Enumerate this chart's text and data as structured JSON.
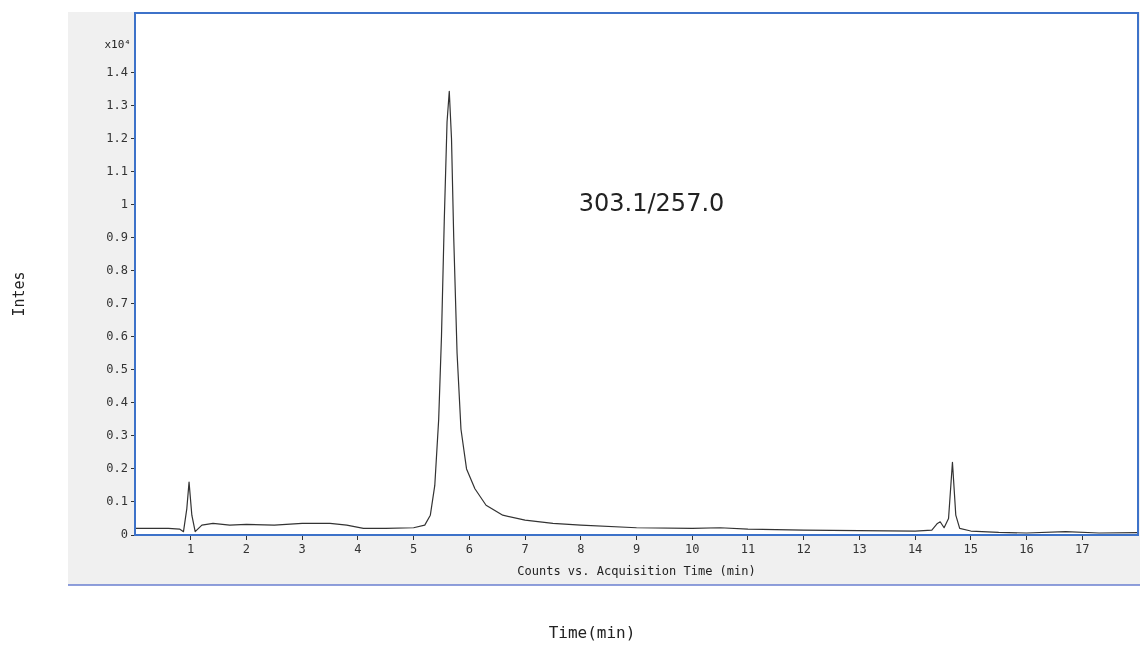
{
  "chart_data": {
    "type": "line",
    "xlabel": "Counts vs. Acquisition Time (min)",
    "annotations": [
      "303.1/257.0",
      "x10⁴",
      "Time(min)",
      "Intes"
    ],
    "xlim": [
      0,
      18
    ],
    "xticks": [
      1,
      2,
      3,
      4,
      5,
      6,
      7,
      8,
      9,
      10,
      11,
      12,
      13,
      14,
      15,
      16,
      17
    ],
    "ylim": [
      0,
      1.58
    ],
    "yticks": [
      0,
      0.1,
      0.2,
      0.3,
      0.4,
      0.5,
      0.6,
      0.7,
      0.8,
      0.9,
      1,
      1.1,
      1.2,
      1.3,
      1.4
    ],
    "grid": false,
    "legend": false,
    "marker": "none",
    "line_style": "solid",
    "series": [
      {
        "color": "#333333",
        "x": [
          0,
          0.3,
          0.6,
          0.8,
          0.87,
          0.93,
          0.97,
          1.02,
          1.08,
          1.2,
          1.4,
          1.7,
          2.0,
          2.5,
          3.0,
          3.5,
          3.8,
          4.1,
          4.5,
          5.0,
          5.2,
          5.3,
          5.38,
          5.45,
          5.5,
          5.55,
          5.6,
          5.64,
          5.68,
          5.72,
          5.78,
          5.85,
          5.95,
          6.1,
          6.3,
          6.6,
          7.0,
          7.5,
          8,
          9,
          10,
          10.5,
          11,
          12,
          13,
          14,
          14.3,
          14.4,
          14.45,
          14.52,
          14.6,
          14.67,
          14.73,
          14.8,
          15,
          15.5,
          16,
          16.7,
          17.3,
          18
        ],
        "values": [
          0.02,
          0.02,
          0.02,
          0.018,
          0.01,
          0.08,
          0.16,
          0.06,
          0.01,
          0.03,
          0.035,
          0.03,
          0.032,
          0.03,
          0.035,
          0.035,
          0.03,
          0.02,
          0.02,
          0.022,
          0.03,
          0.06,
          0.15,
          0.35,
          0.6,
          0.95,
          1.25,
          1.343,
          1.2,
          0.9,
          0.55,
          0.32,
          0.2,
          0.14,
          0.09,
          0.06,
          0.045,
          0.035,
          0.03,
          0.022,
          0.02,
          0.022,
          0.018,
          0.015,
          0.013,
          0.012,
          0.015,
          0.035,
          0.04,
          0.022,
          0.05,
          0.22,
          0.06,
          0.02,
          0.012,
          0.008,
          0.006,
          0.01,
          0.006,
          0.007
        ]
      }
    ]
  }
}
